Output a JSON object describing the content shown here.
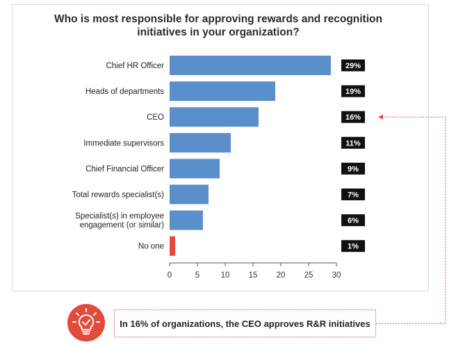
{
  "chart_data": {
    "type": "bar",
    "orientation": "horizontal",
    "title": "Who is most responsible for approving rewards and recognition initiatives in your organization?",
    "title_lines": [
      "Who is most responsible for approving rewards and recognition",
      "initiatives in your organization?"
    ],
    "categories": [
      "Chief HR Officer",
      "Heads of departments",
      "CEO",
      "Immediate supervisors",
      "Chief Financial Officer",
      "Total rewards specialist(s)",
      "Specialist(s) in employee engagement (or similar)",
      "No one"
    ],
    "category_lines": [
      [
        "Chief HR Officer"
      ],
      [
        "Heads of departments"
      ],
      [
        "CEO"
      ],
      [
        "Immediate supervisors"
      ],
      [
        "Chief Financial Officer"
      ],
      [
        "Total rewards specialist(s)"
      ],
      [
        "Specialist(s) in employee",
        "engagement (or similar)"
      ],
      [
        "No one"
      ]
    ],
    "values": [
      29,
      19,
      16,
      11,
      9,
      7,
      6,
      1
    ],
    "value_labels": [
      "29%",
      "19%",
      "16%",
      "11%",
      "9%",
      "7%",
      "6%",
      "1%"
    ],
    "highlight_index": 7,
    "xlim": [
      0,
      30
    ],
    "xticks": [
      0,
      5,
      10,
      15,
      20,
      25,
      30
    ],
    "xlabel": "",
    "ylabel": "",
    "grid": false,
    "legend": "none"
  },
  "callout": {
    "text": "In 16% of organizations, the CEO approves R&R initiatives",
    "icon": "lightbulb-check-icon"
  },
  "colors": {
    "bar": "#5b8fcb",
    "highlight_bar": "#e24a3b",
    "label_badge": "#111111",
    "accent": "#e24a3b"
  }
}
